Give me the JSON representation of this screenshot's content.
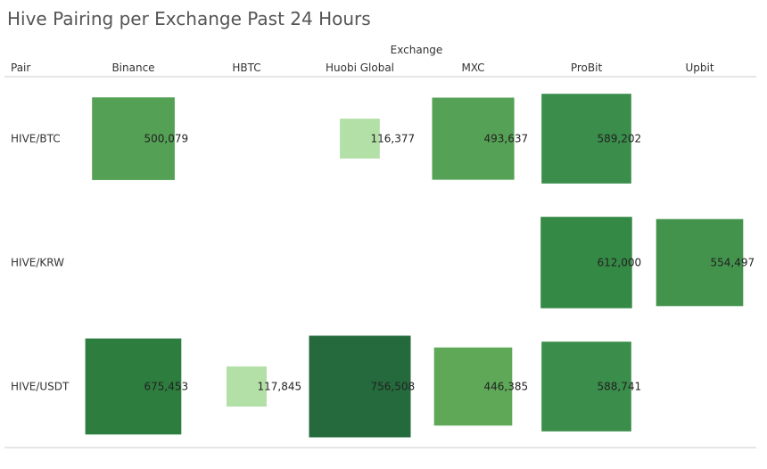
{
  "chart_data": {
    "type": "heatmap",
    "title": "Hive Pairing per Exchange Past 24 Hours",
    "column_header": "Exchange",
    "row_header": "Pair",
    "columns": [
      "Binance",
      "HBTC",
      "Huobi Global",
      "MXC",
      "ProBit",
      "Upbit"
    ],
    "rows": [
      "HIVE/BTC",
      "HIVE/KRW",
      "HIVE/USDT"
    ],
    "cells": [
      {
        "row": "HIVE/BTC",
        "column": "Binance",
        "value": 500079,
        "label": "500,079",
        "color": "#54a054"
      },
      {
        "row": "HIVE/BTC",
        "column": "Huobi Global",
        "value": 116377,
        "label": "116,377",
        "color": "#b3e0a6"
      },
      {
        "row": "HIVE/BTC",
        "column": "MXC",
        "value": 493637,
        "label": "493,637",
        "color": "#55a155"
      },
      {
        "row": "HIVE/BTC",
        "column": "ProBit",
        "value": 589202,
        "label": "589,202",
        "color": "#3a8d4a"
      },
      {
        "row": "HIVE/KRW",
        "column": "ProBit",
        "value": 612000,
        "label": "612,000",
        "color": "#348945"
      },
      {
        "row": "HIVE/KRW",
        "column": "Upbit",
        "value": 554497,
        "label": "554,497",
        "color": "#43934d"
      },
      {
        "row": "HIVE/USDT",
        "column": "Binance",
        "value": 675453,
        "label": "675,453",
        "color": "#2d7d3f"
      },
      {
        "row": "HIVE/USDT",
        "column": "HBTC",
        "value": 117845,
        "label": "117,845",
        "color": "#b3e0a6"
      },
      {
        "row": "HIVE/USDT",
        "column": "Huobi Global",
        "value": 756508,
        "label": "756,508",
        "color": "#246a3c"
      },
      {
        "row": "HIVE/USDT",
        "column": "MXC",
        "value": 446385,
        "label": "446,385",
        "color": "#5fa858"
      },
      {
        "row": "HIVE/USDT",
        "column": "ProBit",
        "value": 588741,
        "label": "588,741",
        "color": "#3a8d4a"
      }
    ]
  }
}
